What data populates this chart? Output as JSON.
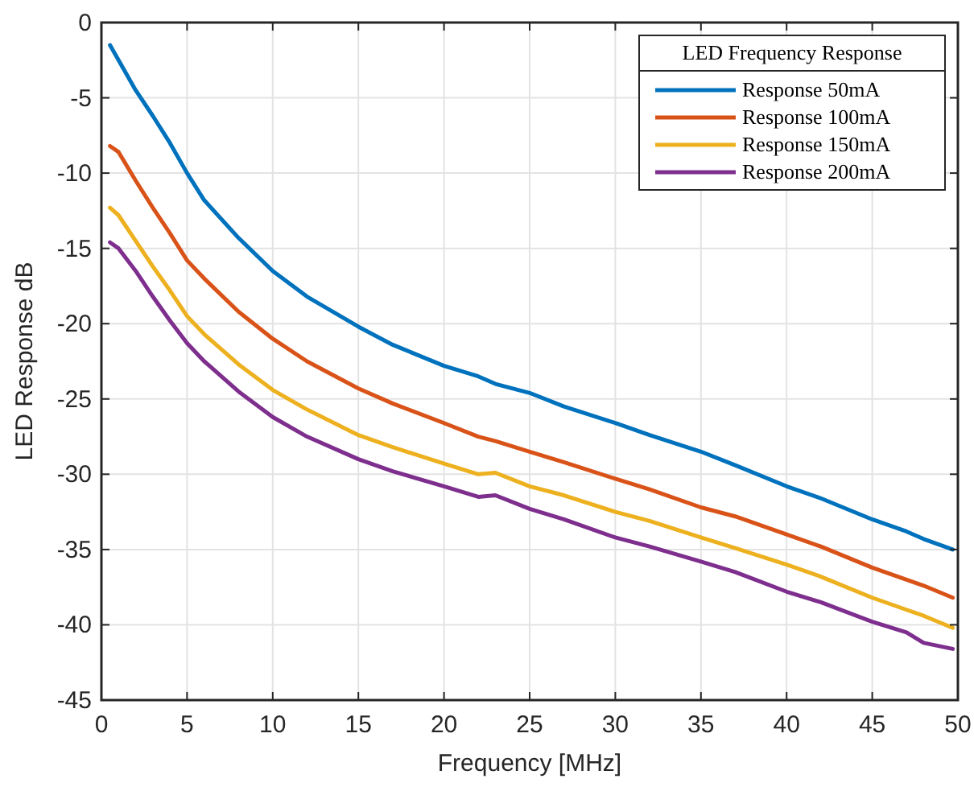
{
  "chart_data": {
    "type": "line",
    "xlabel": "Frequency [MHz]",
    "ylabel": "LED Response dB",
    "legend_title": "LED Frequency Response",
    "x": [
      0.5,
      1,
      2,
      3,
      4,
      5,
      6,
      8,
      10,
      12,
      15,
      17,
      20,
      22,
      23,
      25,
      27,
      30,
      32,
      35,
      37,
      40,
      42,
      45,
      47,
      48,
      49.7
    ],
    "series": [
      {
        "name": "Response 50mA",
        "color": "#0072bd",
        "values": [
          -1.5,
          -2.5,
          -4.5,
          -6.2,
          -8,
          -10,
          -11.8,
          -14.3,
          -16.5,
          -18.2,
          -20.2,
          -21.4,
          -22.8,
          -23.5,
          -24,
          -24.6,
          -25.5,
          -26.6,
          -27.4,
          -28.5,
          -29.4,
          -30.8,
          -31.6,
          -33,
          -33.8,
          -34.3,
          -35
        ]
      },
      {
        "name": "Response 100mA",
        "color": "#d95319",
        "values": [
          -8.2,
          -8.6,
          -10.5,
          -12.3,
          -14,
          -15.8,
          -17,
          -19.2,
          -21,
          -22.5,
          -24.3,
          -25.3,
          -26.6,
          -27.5,
          -27.8,
          -28.5,
          -29.2,
          -30.3,
          -31,
          -32.2,
          -32.8,
          -34,
          -34.8,
          -36.2,
          -37,
          -37.4,
          -38.2
        ]
      },
      {
        "name": "Response 150mA",
        "color": "#edb120",
        "values": [
          -12.3,
          -12.8,
          -14.5,
          -16.2,
          -17.8,
          -19.5,
          -20.7,
          -22.7,
          -24.4,
          -25.7,
          -27.4,
          -28.2,
          -29.3,
          -30,
          -29.9,
          -30.8,
          -31.4,
          -32.5,
          -33.1,
          -34.2,
          -34.9,
          -36,
          -36.8,
          -38.2,
          -39,
          -39.4,
          -40.2
        ]
      },
      {
        "name": "Response 200mA",
        "color": "#7e2f8e",
        "values": [
          -14.6,
          -15,
          -16.5,
          -18.2,
          -19.8,
          -21.3,
          -22.5,
          -24.5,
          -26.2,
          -27.5,
          -29,
          -29.8,
          -30.8,
          -31.5,
          -31.4,
          -32.3,
          -33,
          -34.2,
          -34.8,
          -35.8,
          -36.5,
          -37.8,
          -38.5,
          -39.8,
          -40.5,
          -41.2,
          -41.6
        ]
      }
    ],
    "xlim": [
      0,
      50
    ],
    "xticks": [
      0,
      5,
      10,
      15,
      20,
      25,
      30,
      35,
      40,
      45,
      50
    ],
    "ylim": [
      -45,
      0
    ],
    "yticks": [
      -45,
      -40,
      -35,
      -30,
      -25,
      -20,
      -15,
      -10,
      -5,
      0
    ],
    "grid": true,
    "legend": "top right",
    "line_style": "solid",
    "marker": "none"
  }
}
